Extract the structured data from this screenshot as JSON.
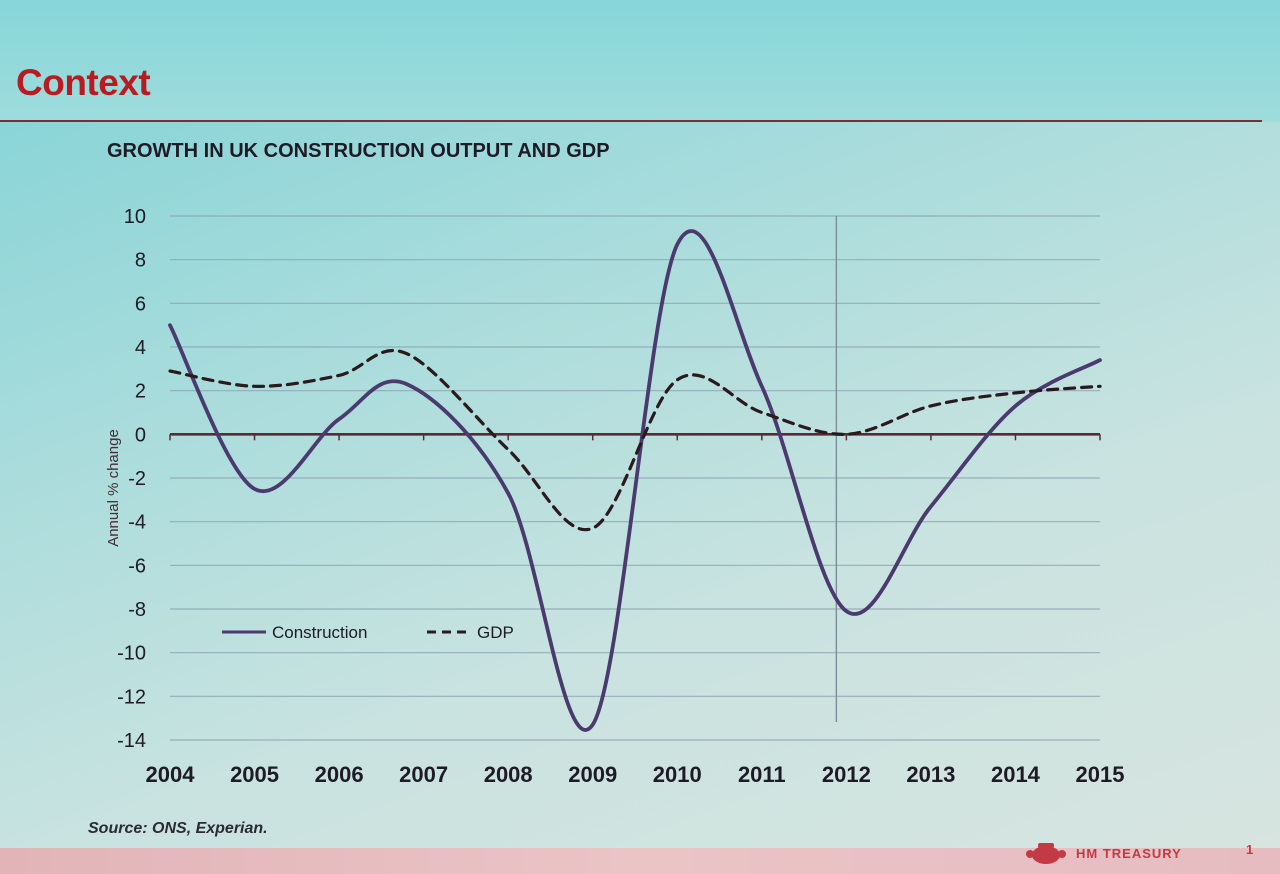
{
  "slide": {
    "title": "Context",
    "source": "Source: ONS, Experian.",
    "footer_brand": "HM TREASURY",
    "page_number": "1"
  },
  "colors": {
    "title_red": "#b81c22",
    "construction_line": "#4a3a6e",
    "gdp_line": "#2a1a1e",
    "zero_line": "#5a2a30",
    "grid": "#8aa2b0"
  },
  "chart_data": {
    "type": "line",
    "title": "GROWTH IN UK CONSTRUCTION OUTPUT AND GDP",
    "xlabel": "",
    "ylabel": "Annual % change",
    "ylim": [
      -14,
      10
    ],
    "yticks": [
      10,
      8,
      6,
      4,
      2,
      0,
      -2,
      -4,
      -6,
      -8,
      -10,
      -12,
      -14
    ],
    "xlim": [
      2004,
      2015
    ],
    "xticks": [
      2004,
      2005,
      2006,
      2007,
      2008,
      2009,
      2010,
      2011,
      2012,
      2013,
      2014,
      2015
    ],
    "legend_position": "lower-left",
    "series": [
      {
        "name": "Construction",
        "style": "solid",
        "x": [
          2004,
          2005,
          2006,
          2006.8,
          2008,
          2009,
          2010,
          2011,
          2012,
          2013,
          2014,
          2015
        ],
        "values": [
          5.0,
          -2.5,
          0.7,
          2.3,
          -2.7,
          -13.3,
          8.7,
          2.2,
          -8.1,
          -3.3,
          1.3,
          3.4
        ]
      },
      {
        "name": "GDP",
        "style": "dashed",
        "x": [
          2004,
          2005,
          2006,
          2006.8,
          2008,
          2009,
          2010,
          2011,
          2012,
          2013,
          2014,
          2015
        ],
        "values": [
          2.9,
          2.2,
          2.7,
          3.7,
          -0.7,
          -4.3,
          2.5,
          1.0,
          0.0,
          1.3,
          1.9,
          2.2
        ]
      }
    ]
  }
}
